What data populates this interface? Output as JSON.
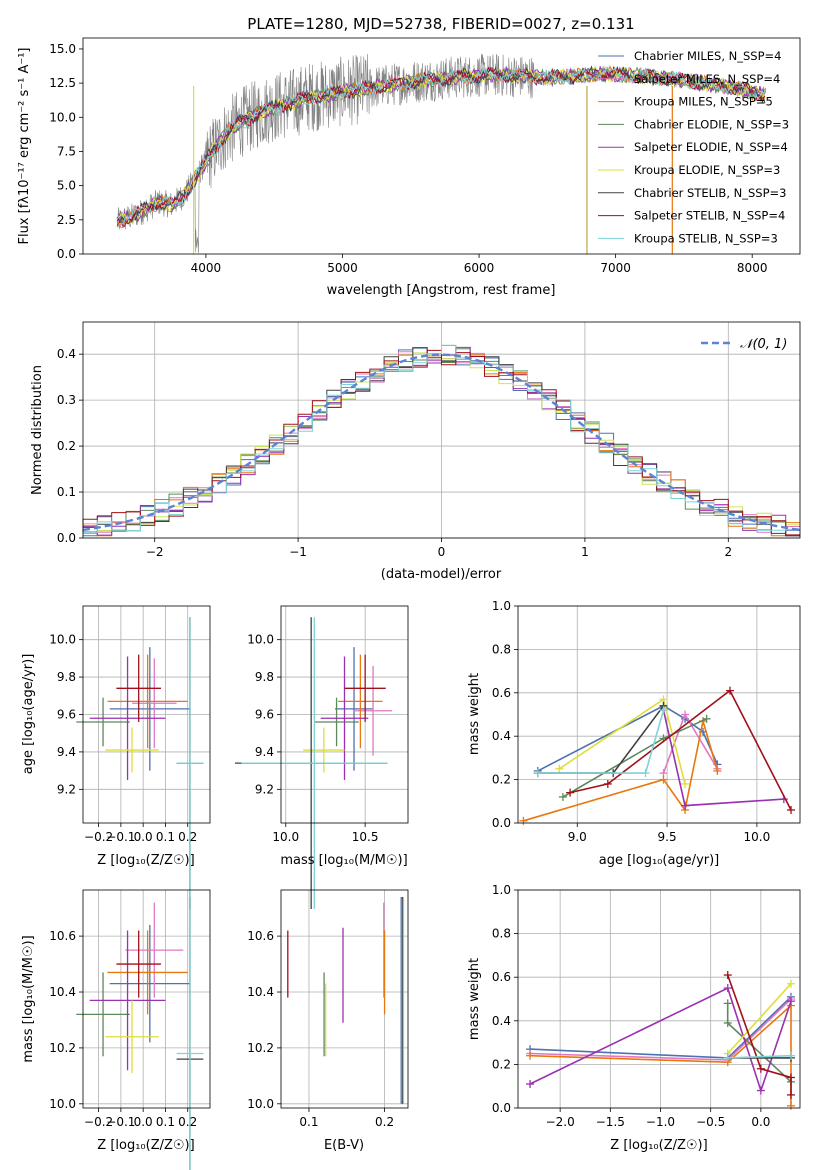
{
  "chart_data": [
    {
      "type": "line",
      "title": "PLATE=1280, MJD=52738, FIBERID=0027, z=0.131",
      "xlabel": "wavelength [Angstrom, rest frame]",
      "ylabel": "Flux [fλ10⁻¹⁷ erg cm⁻² s⁻¹ A⁻¹]",
      "xlim": [
        3100,
        8350
      ],
      "ylim": [
        0,
        15.8
      ],
      "xticks": [
        4000,
        5000,
        6000,
        7000,
        8000
      ],
      "yticks": [
        0.0,
        2.5,
        5.0,
        7.5,
        10.0,
        12.5,
        15.0
      ],
      "legend_position": "top-right",
      "data": {
        "name": "data",
        "color": "#808080",
        "x": [
          3350,
          3450,
          3550,
          3650,
          3750,
          3850,
          3950,
          4050,
          4150,
          4250,
          4350,
          4450,
          4550,
          4650,
          4750,
          4850,
          4950,
          5100,
          5300,
          5500,
          5700,
          5900,
          6100,
          6300,
          6500,
          6700,
          6900,
          7100,
          7300,
          7500,
          7700,
          7900,
          8100
        ],
        "y": [
          2.4,
          2.7,
          3.2,
          3.8,
          3.6,
          4.4,
          6.0,
          7.5,
          8.8,
          9.6,
          10.1,
          10.6,
          10.9,
          11.1,
          11.5,
          11.6,
          11.8,
          12.0,
          12.3,
          12.6,
          12.8,
          13.0,
          13.1,
          13.0,
          12.9,
          13.0,
          13.2,
          13.1,
          12.9,
          12.7,
          12.4,
          12.1,
          11.6
        ]
      },
      "series": [
        {
          "name": "Chabrier MILES, N_SSP=4",
          "color": "#4c72b0"
        },
        {
          "name": "Salpeter MILES, N_SSP=4",
          "color": "#e377c2"
        },
        {
          "name": "Kroupa MILES, N_SSP=5",
          "color": "#e8770e"
        },
        {
          "name": "Chabrier ELODIE, N_SSP=3",
          "color": "#5b8a5b"
        },
        {
          "name": "Salpeter ELODIE, N_SSP=4",
          "color": "#9b30b0"
        },
        {
          "name": "Kroupa ELODIE, N_SSP=3",
          "color": "#dede3a"
        },
        {
          "name": "Chabrier STELIB, N_SSP=3",
          "color": "#404040"
        },
        {
          "name": "Salpeter STELIB, N_SSP=4",
          "color": "#a0101a"
        },
        {
          "name": "Kroupa STELIB, N_SSP=3",
          "color": "#7fd3d6"
        }
      ]
    },
    {
      "type": "bar",
      "xlabel": "(data-model)/error",
      "ylabel": "Normed distribution",
      "xlim": [
        -2.5,
        2.5
      ],
      "ylim": [
        0,
        0.47
      ],
      "xticks": [
        -2,
        -1,
        0,
        1,
        2
      ],
      "yticks": [
        0.0,
        0.1,
        0.2,
        0.3,
        0.4
      ],
      "bin_edges": [
        -2.5,
        -2.4,
        -2.3,
        -2.2,
        -2.1,
        -2.0,
        -1.9,
        -1.8,
        -1.7,
        -1.6,
        -1.5,
        -1.4,
        -1.3,
        -1.2,
        -1.1,
        -1.0,
        -0.9,
        -0.8,
        -0.7,
        -0.6,
        -0.5,
        -0.4,
        -0.3,
        -0.2,
        -0.1,
        0.0,
        0.1,
        0.2,
        0.3,
        0.4,
        0.5,
        0.6,
        0.7,
        0.8,
        0.9,
        1.0,
        1.1,
        1.2,
        1.3,
        1.4,
        1.5,
        1.6,
        1.7,
        1.8,
        1.9,
        2.0,
        2.1,
        2.2,
        2.3,
        2.4,
        2.5
      ],
      "histogram_colors": [
        "#4c72b0",
        "#e377c2",
        "#e8770e",
        "#5b8a5b",
        "#9b30b0",
        "#c8e65a",
        "#404040",
        "#a0101a",
        "#7fd3d6"
      ],
      "reference_curve": {
        "name": "𝒩(0, 1)",
        "mean": 0,
        "sigma": 1,
        "color": "#5b84d6"
      }
    },
    {
      "type": "scatter",
      "xlabel": "Z [log₁₀(Z/Z☉)]",
      "ylabel": "age  [log₁₀(age/yr)]",
      "xlim": [
        -0.27,
        0.3
      ],
      "ylim": [
        9.02,
        10.18
      ],
      "xticks": [
        -0.2,
        -0.1,
        0.0,
        0.1,
        0.2
      ],
      "yticks": [
        9.2,
        9.4,
        9.6,
        9.8,
        10.0
      ],
      "points": [
        {
          "x": 0.03,
          "y": 9.63,
          "xerr": 0.18,
          "yerr": 0.33,
          "color": "#4c72b0"
        },
        {
          "x": 0.05,
          "y": 9.66,
          "xerr": 0.1,
          "yerr": 0.24,
          "color": "#e377c2"
        },
        {
          "x": 0.02,
          "y": 9.67,
          "xerr": 0.18,
          "yerr": 0.25,
          "color": "#e8770e"
        },
        {
          "x": -0.18,
          "y": 9.56,
          "xerr": 0.12,
          "yerr": 0.13,
          "color": "#5b8a5b"
        },
        {
          "x": -0.07,
          "y": 9.58,
          "xerr": 0.17,
          "yerr": 0.33,
          "color": "#9b30b0"
        },
        {
          "x": -0.05,
          "y": 9.41,
          "xerr": 0.12,
          "yerr": 0.12,
          "color": "#dede3a"
        },
        {
          "x": 0.21,
          "y": 9.34,
          "xerr": 0.06,
          "yerr": 0.78,
          "color": "#404040"
        },
        {
          "x": -0.02,
          "y": 9.74,
          "xerr": 0.1,
          "yerr": 0.18,
          "color": "#a0101a"
        },
        {
          "x": 0.21,
          "y": 9.34,
          "xerr": 0.06,
          "yerr": 0.78,
          "color": "#7fd3d6"
        }
      ]
    },
    {
      "type": "scatter",
      "xlabel": "mass [log₁₀(M/M☉)]",
      "ylabel": "",
      "xlim": [
        9.97,
        10.77
      ],
      "ylim": [
        9.02,
        10.18
      ],
      "xticks": [
        10.0,
        10.5
      ],
      "yticks": [
        9.2,
        9.4,
        9.6,
        9.8,
        10.0
      ],
      "points": [
        {
          "x": 10.43,
          "y": 9.63,
          "xerr": 0.12,
          "yerr": 0.33,
          "color": "#4c72b0"
        },
        {
          "x": 10.55,
          "y": 9.62,
          "xerr": 0.12,
          "yerr": 0.24,
          "color": "#e377c2"
        },
        {
          "x": 10.47,
          "y": 9.67,
          "xerr": 0.14,
          "yerr": 0.25,
          "color": "#e8770e"
        },
        {
          "x": 10.32,
          "y": 9.56,
          "xerr": 0.14,
          "yerr": 0.13,
          "color": "#5b8a5b"
        },
        {
          "x": 10.37,
          "y": 9.58,
          "xerr": 0.15,
          "yerr": 0.33,
          "color": "#9b30b0"
        },
        {
          "x": 10.24,
          "y": 9.41,
          "xerr": 0.13,
          "yerr": 0.12,
          "color": "#dede3a"
        },
        {
          "x": 10.16,
          "y": 9.34,
          "xerr": 0.48,
          "yerr": 0.78,
          "color": "#404040"
        },
        {
          "x": 10.5,
          "y": 9.74,
          "xerr": 0.13,
          "yerr": 0.18,
          "color": "#a0101a"
        },
        {
          "x": 10.18,
          "y": 9.34,
          "xerr": 0.46,
          "yerr": 0.78,
          "color": "#7fd3d6"
        }
      ]
    },
    {
      "type": "line",
      "xlabel": "age  [log₁₀(age/yr)]",
      "ylabel": "mass weight",
      "xlim": [
        8.67,
        10.24
      ],
      "ylim": [
        0,
        1.0
      ],
      "xticks": [
        9.0,
        9.5,
        10.0
      ],
      "yticks": [
        0.0,
        0.2,
        0.4,
        0.6,
        0.8,
        1.0
      ],
      "series": [
        {
          "color": "#4c72b0",
          "x": [
            8.78,
            9.48,
            9.6,
            9.7,
            9.78
          ],
          "y": [
            0.24,
            0.54,
            0.48,
            0.42,
            0.27
          ]
        },
        {
          "color": "#e377c2",
          "x": [
            9.48,
            9.6,
            9.78
          ],
          "y": [
            0.23,
            0.5,
            0.25
          ]
        },
        {
          "color": "#e8770e",
          "x": [
            8.7,
            9.48,
            9.6,
            9.7,
            9.78
          ],
          "y": [
            0.01,
            0.2,
            0.06,
            0.47,
            0.24
          ]
        },
        {
          "color": "#5b8a5b",
          "x": [
            8.92,
            9.48,
            9.72
          ],
          "y": [
            0.12,
            0.39,
            0.48
          ]
        },
        {
          "color": "#9b30b0",
          "x": [
            9.48,
            9.6,
            10.15
          ],
          "y": [
            0.52,
            0.08,
            0.11
          ]
        },
        {
          "color": "#dede3a",
          "x": [
            8.9,
            9.48,
            9.6
          ],
          "y": [
            0.25,
            0.57,
            0.18
          ]
        },
        {
          "color": "#404040",
          "x": [
            8.78,
            9.2,
            9.48
          ],
          "y": [
            0.23,
            0.23,
            0.54
          ]
        },
        {
          "color": "#a0101a",
          "x": [
            8.96,
            9.17,
            9.85,
            10.19
          ],
          "y": [
            0.14,
            0.18,
            0.61,
            0.06
          ]
        },
        {
          "color": "#7fd3d6",
          "x": [
            8.78,
            9.38,
            9.48
          ],
          "y": [
            0.23,
            0.23,
            0.52
          ]
        }
      ]
    },
    {
      "type": "scatter",
      "xlabel": "Z [log₁₀(Z/Z☉)]",
      "ylabel": "mass [log₁₀(M/M☉)]",
      "xlim": [
        -0.27,
        0.3
      ],
      "ylim": [
        9.985,
        10.765
      ],
      "xticks": [
        -0.2,
        -0.1,
        0.0,
        0.1,
        0.2
      ],
      "yticks": [
        10.0,
        10.2,
        10.4,
        10.6
      ],
      "points": [
        {
          "x": 0.03,
          "y": 10.43,
          "xerr": 0.18,
          "yerr": 0.21,
          "color": "#4c72b0"
        },
        {
          "x": 0.05,
          "y": 10.55,
          "xerr": 0.13,
          "yerr": 0.17,
          "color": "#e377c2"
        },
        {
          "x": 0.02,
          "y": 10.47,
          "xerr": 0.18,
          "yerr": 0.15,
          "color": "#e8770e"
        },
        {
          "x": -0.18,
          "y": 10.32,
          "xerr": 0.12,
          "yerr": 0.15,
          "color": "#5b8a5b"
        },
        {
          "x": -0.07,
          "y": 10.37,
          "xerr": 0.17,
          "yerr": 0.25,
          "color": "#9b30b0"
        },
        {
          "x": -0.05,
          "y": 10.24,
          "xerr": 0.12,
          "yerr": 0.13,
          "color": "#dede3a"
        },
        {
          "x": 0.21,
          "y": 10.16,
          "xerr": 0.06,
          "yerr": 0.58,
          "color": "#404040"
        },
        {
          "x": -0.02,
          "y": 10.5,
          "xerr": 0.1,
          "yerr": 0.12,
          "color": "#a0101a"
        },
        {
          "x": 0.21,
          "y": 10.18,
          "xerr": 0.06,
          "yerr": 0.56,
          "color": "#7fd3d6"
        }
      ]
    },
    {
      "type": "scatter",
      "xlabel": "E(B-V)",
      "ylabel": "",
      "xlim": [
        0.063,
        0.231
      ],
      "ylim": [
        9.985,
        10.765
      ],
      "xticks": [
        0.1,
        0.2
      ],
      "yticks": [
        10.0,
        10.2,
        10.4,
        10.6
      ],
      "points": [
        {
          "x": 0.072,
          "y": 10.5,
          "yerr": 0.12,
          "color": "#a0101a"
        },
        {
          "x": 0.12,
          "y": 10.32,
          "yerr": 0.15,
          "color": "#5b8a5b"
        },
        {
          "x": 0.122,
          "y": 10.3,
          "yerr": 0.13,
          "color": "#dede3a"
        },
        {
          "x": 0.145,
          "y": 10.46,
          "yerr": 0.17,
          "color": "#9b30b0"
        },
        {
          "x": 0.199,
          "y": 10.55,
          "yerr": 0.17,
          "color": "#e377c2"
        },
        {
          "x": 0.2,
          "y": 10.47,
          "yerr": 0.15,
          "color": "#e8770e"
        },
        {
          "x": 0.222,
          "y": 10.37,
          "yerr": 0.37,
          "color": "#4c72b0"
        },
        {
          "x": 0.224,
          "y": 10.37,
          "yerr": 0.37,
          "color": "#404040"
        },
        {
          "x": 0.225,
          "y": 10.37,
          "yerr": 0.36,
          "color": "#7fd3d6"
        }
      ]
    },
    {
      "type": "line",
      "xlabel": "Z [log₁₀(Z/Z☉)]",
      "ylabel": "mass weight",
      "xlim": [
        -2.42,
        0.39
      ],
      "ylim": [
        0,
        1.0
      ],
      "xticks": [
        -2.0,
        -1.5,
        -1.0,
        -0.5,
        0.0
      ],
      "yticks": [
        0.0,
        0.2,
        0.4,
        0.6,
        0.8,
        1.0
      ],
      "series": [
        {
          "color": "#4c72b0",
          "x": [
            -2.3,
            -0.33,
            0.3
          ],
          "y": [
            0.27,
            0.23,
            0.51
          ]
        },
        {
          "color": "#e377c2",
          "x": [
            -2.3,
            -0.33,
            0.3
          ],
          "y": [
            0.25,
            0.22,
            0.5
          ]
        },
        {
          "color": "#e8770e",
          "x": [
            -2.3,
            -0.33,
            0.3,
            0.3
          ],
          "y": [
            0.24,
            0.21,
            0.47,
            0.01
          ]
        },
        {
          "color": "#5b8a5b",
          "x": [
            -0.33,
            -0.33,
            0.3
          ],
          "y": [
            0.48,
            0.39,
            0.12
          ]
        },
        {
          "color": "#9b30b0",
          "x": [
            -2.3,
            -0.33,
            0.0,
            0.3
          ],
          "y": [
            0.11,
            0.55,
            0.08,
            0.49
          ]
        },
        {
          "color": "#dede3a",
          "x": [
            -0.33,
            0.3
          ],
          "y": [
            0.25,
            0.57
          ]
        },
        {
          "color": "#404040",
          "x": [
            -0.33,
            0.3
          ],
          "y": [
            0.23,
            0.23
          ]
        },
        {
          "color": "#a0101a",
          "x": [
            -0.33,
            0.0,
            0.3,
            0.3
          ],
          "y": [
            0.61,
            0.18,
            0.14,
            0.06
          ]
        },
        {
          "color": "#7fd3d6",
          "x": [
            -0.33,
            0.3
          ],
          "y": [
            0.23,
            0.24
          ]
        }
      ]
    }
  ]
}
